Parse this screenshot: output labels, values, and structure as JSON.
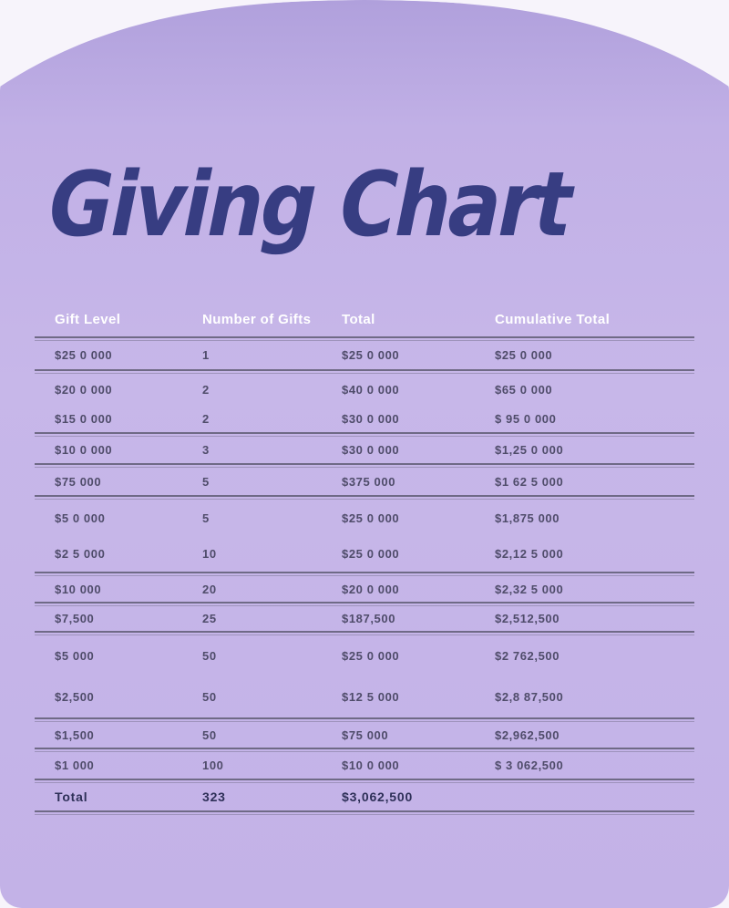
{
  "page": {
    "title": "Giving Chart"
  },
  "table": {
    "headers": [
      "Gift Level",
      "Number of Gifts",
      "Total",
      "Cumulative Total"
    ],
    "rows": [
      [
        "$25 0 000",
        "1",
        "$25 0 000",
        "$25 0 000"
      ],
      [
        "$20 0 000",
        "2",
        "$40 0 000",
        "$65 0 000"
      ],
      [
        "$15 0 000",
        "2",
        "$30 0 000",
        "$ 95 0 000"
      ],
      [
        "$10 0 000",
        "3",
        "$30 0 000",
        "$1,25 0 000"
      ],
      [
        "$75 000",
        "5",
        "$375 000",
        "$1 62 5 000"
      ],
      [
        "$5 0 000",
        "5",
        "$25 0 000",
        "$1,875 000"
      ],
      [
        "$2 5 000",
        "10",
        "$25 0 000",
        "$2,12 5 000"
      ],
      [
        "$10 000",
        "20",
        "$20 0 000",
        "$2,32 5 000"
      ],
      [
        "$7,500",
        "25",
        "$187,500",
        "$2,512,500"
      ],
      [
        "$5 000",
        "50",
        "$25 0 000",
        "$2 762,500"
      ],
      [
        "$2,500",
        "50",
        "$12 5 000",
        "$2,8 87,500"
      ],
      [
        "$1,500",
        "50",
        "$75 000",
        "$2,962,500"
      ],
      [
        "$1 000",
        "100",
        "$10 0 000",
        "$ 3 062,500"
      ]
    ],
    "total_row": [
      "Total",
      "323",
      "$3,062,500",
      ""
    ]
  },
  "colors": {
    "page_background": "#f7f4fb",
    "panel_purple": "#c3b2e7",
    "panel_purple_top": "#b0a0dc",
    "title_text": "#373d82",
    "header_text": "#ffffff",
    "body_text": "#4f4c6a",
    "total_text": "#2e3058",
    "rule_line": "#6f6a86"
  },
  "chart_data": {
    "type": "table",
    "title": "Giving Chart",
    "columns": [
      "Gift Level",
      "Number of Gifts",
      "Total",
      "Cumulative Total"
    ],
    "rows": [
      [
        250000,
        1,
        250000,
        250000
      ],
      [
        200000,
        2,
        400000,
        650000
      ],
      [
        150000,
        2,
        300000,
        950000
      ],
      [
        100000,
        3,
        300000,
        1250000
      ],
      [
        75000,
        5,
        375000,
        1625000
      ],
      [
        50000,
        5,
        250000,
        1875000
      ],
      [
        25000,
        10,
        250000,
        2125000
      ],
      [
        10000,
        20,
        200000,
        2325000
      ],
      [
        7500,
        25,
        187500,
        2512500
      ],
      [
        5000,
        50,
        250000,
        2762500
      ],
      [
        2500,
        50,
        125000,
        2887500
      ],
      [
        1500,
        50,
        75000,
        2962500
      ],
      [
        1000,
        100,
        100000,
        3062500
      ]
    ],
    "totals": {
      "number_of_gifts": 323,
      "total": 3062500
    }
  }
}
